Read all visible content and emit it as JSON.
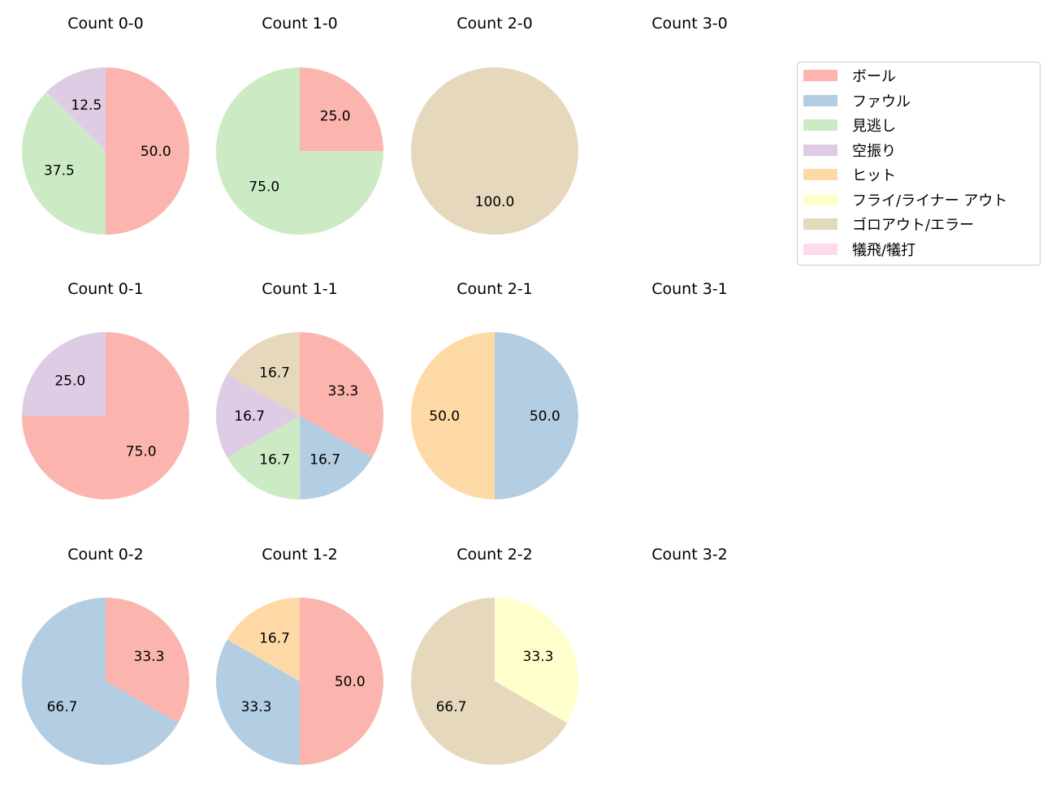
{
  "chart_data": {
    "type": "pie",
    "categories": [
      "ボール",
      "ファウル",
      "見逃し",
      "空振り",
      "ヒット",
      "フライ/ライナー アウト",
      "ゴロアウト/エラー",
      "犠飛/犠打"
    ],
    "colors": [
      "#fbb4ae",
      "#b3cde3",
      "#ccebc5",
      "#decbe4",
      "#fed9a6",
      "#ffffcc",
      "#e5d8bd",
      "#fddaec"
    ],
    "start_angle": "top",
    "direction": "clockwise",
    "legend_position": "top-right",
    "subplots": [
      {
        "title": "Count 0-0",
        "values": [
          50.0,
          0,
          37.5,
          12.5,
          0,
          0,
          0,
          0
        ]
      },
      {
        "title": "Count 1-0",
        "values": [
          25.0,
          0,
          75.0,
          0,
          0,
          0,
          0,
          0
        ]
      },
      {
        "title": "Count 2-0",
        "values": [
          0,
          0,
          0,
          0,
          0,
          0,
          100.0,
          0
        ]
      },
      {
        "title": "Count 3-0",
        "values": []
      },
      {
        "title": "Count 0-1",
        "values": [
          75.0,
          0,
          0,
          25.0,
          0,
          0,
          0,
          0
        ]
      },
      {
        "title": "Count 1-1",
        "values": [
          33.3,
          16.7,
          16.7,
          16.7,
          0,
          0,
          16.7,
          0
        ]
      },
      {
        "title": "Count 2-1",
        "values": [
          0,
          50.0,
          0,
          0,
          50.0,
          0,
          0,
          0
        ]
      },
      {
        "title": "Count 3-1",
        "values": []
      },
      {
        "title": "Count 0-2",
        "values": [
          33.3,
          66.7,
          0,
          0,
          0,
          0,
          0,
          0
        ]
      },
      {
        "title": "Count 1-2",
        "values": [
          50.0,
          33.3,
          0,
          0,
          16.7,
          0,
          0,
          0
        ]
      },
      {
        "title": "Count 2-2",
        "values": [
          0,
          0,
          0,
          0,
          0,
          33.3,
          66.7,
          0
        ]
      },
      {
        "title": "Count 3-2",
        "values": []
      }
    ]
  }
}
